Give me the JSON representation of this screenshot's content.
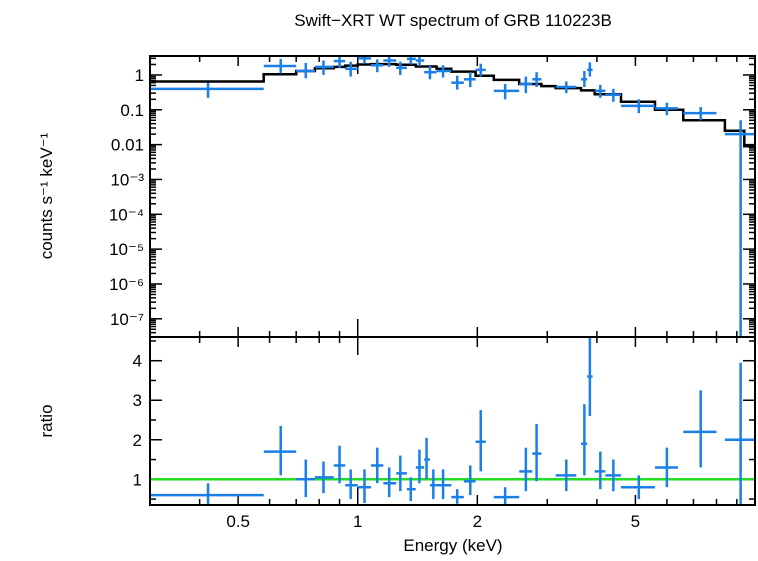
{
  "chart_data": [
    {
      "type": "scatter",
      "title": "Swift−XRT WT spectrum of GRB 110223B",
      "ylabel": "counts s⁻¹ keV⁻¹",
      "yscale": "log",
      "xscale": "log",
      "xlim": [
        0.3,
        10.0
      ],
      "ylim": [
        3e-08,
        3.5
      ],
      "yticks": [
        {
          "v": 1,
          "label": "1"
        },
        {
          "v": 0.1,
          "label": "0.1"
        },
        {
          "v": 0.01,
          "label": "0.01"
        },
        {
          "v": 0.001,
          "label": "10⁻³"
        },
        {
          "v": 0.0001,
          "label": "10⁻⁴"
        },
        {
          "v": 1e-05,
          "label": "10⁻⁵"
        },
        {
          "v": 1e-06,
          "label": "10⁻⁶"
        },
        {
          "v": 1e-07,
          "label": "10⁻⁷"
        }
      ],
      "series": [
        {
          "kind": "data",
          "color": "#1a7fe6",
          "points": [
            {
              "x": 0.42,
              "xlo": 0.3,
              "xhi": 0.58,
              "y": 0.4,
              "ylo": 0.22,
              "yhi": 0.6
            },
            {
              "x": 0.64,
              "xlo": 0.58,
              "xhi": 0.7,
              "y": 1.8,
              "ylo": 1.1,
              "yhi": 2.9
            },
            {
              "x": 0.74,
              "xlo": 0.7,
              "xhi": 0.78,
              "y": 1.3,
              "ylo": 0.8,
              "yhi": 2.2
            },
            {
              "x": 0.82,
              "xlo": 0.78,
              "xhi": 0.87,
              "y": 1.7,
              "ylo": 1.0,
              "yhi": 2.6
            },
            {
              "x": 0.9,
              "xlo": 0.87,
              "xhi": 0.93,
              "y": 2.5,
              "ylo": 1.6,
              "yhi": 3.4
            },
            {
              "x": 0.96,
              "xlo": 0.93,
              "xhi": 1.0,
              "y": 1.5,
              "ylo": 0.9,
              "yhi": 2.4
            },
            {
              "x": 1.04,
              "xlo": 1.0,
              "xhi": 1.08,
              "y": 3.0,
              "ylo": 2.1,
              "yhi": 3.4
            },
            {
              "x": 1.12,
              "xlo": 1.08,
              "xhi": 1.16,
              "y": 1.9,
              "ylo": 1.2,
              "yhi": 2.8
            },
            {
              "x": 1.2,
              "xlo": 1.16,
              "xhi": 1.25,
              "y": 2.6,
              "ylo": 1.7,
              "yhi": 3.4
            },
            {
              "x": 1.28,
              "xlo": 1.25,
              "xhi": 1.33,
              "y": 1.6,
              "ylo": 1.0,
              "yhi": 2.4
            },
            {
              "x": 1.36,
              "xlo": 1.33,
              "xhi": 1.4,
              "y": 2.9,
              "ylo": 2.0,
              "yhi": 3.4
            },
            {
              "x": 1.43,
              "xlo": 1.4,
              "xhi": 1.47,
              "y": 2.6,
              "ylo": 1.8,
              "yhi": 3.4
            },
            {
              "x": 1.52,
              "xlo": 1.47,
              "xhi": 1.58,
              "y": 1.2,
              "ylo": 0.75,
              "yhi": 1.8
            },
            {
              "x": 1.64,
              "xlo": 1.58,
              "xhi": 1.72,
              "y": 1.3,
              "ylo": 0.85,
              "yhi": 1.9
            },
            {
              "x": 1.78,
              "xlo": 1.72,
              "xhi": 1.85,
              "y": 0.6,
              "ylo": 0.38,
              "yhi": 0.95
            },
            {
              "x": 1.92,
              "xlo": 1.85,
              "xhi": 1.98,
              "y": 0.75,
              "ylo": 0.45,
              "yhi": 1.2
            },
            {
              "x": 2.04,
              "xlo": 1.98,
              "xhi": 2.1,
              "y": 1.4,
              "ylo": 0.9,
              "yhi": 2.1
            },
            {
              "x": 2.35,
              "xlo": 2.2,
              "xhi": 2.55,
              "y": 0.35,
              "ylo": 0.2,
              "yhi": 0.55
            },
            {
              "x": 2.65,
              "xlo": 2.55,
              "xhi": 2.75,
              "y": 0.55,
              "ylo": 0.3,
              "yhi": 0.9
            },
            {
              "x": 2.82,
              "xlo": 2.75,
              "xhi": 2.9,
              "y": 0.75,
              "ylo": 0.45,
              "yhi": 1.2
            },
            {
              "x": 3.35,
              "xlo": 3.15,
              "xhi": 3.55,
              "y": 0.45,
              "ylo": 0.3,
              "yhi": 0.65
            },
            {
              "x": 3.72,
              "xlo": 3.65,
              "xhi": 3.78,
              "y": 0.75,
              "ylo": 0.45,
              "yhi": 1.3
            },
            {
              "x": 3.84,
              "xlo": 3.78,
              "xhi": 3.9,
              "y": 1.4,
              "ylo": 0.9,
              "yhi": 2.3
            },
            {
              "x": 4.08,
              "xlo": 3.95,
              "xhi": 4.2,
              "y": 0.35,
              "ylo": 0.22,
              "yhi": 0.52
            },
            {
              "x": 4.4,
              "xlo": 4.2,
              "xhi": 4.6,
              "y": 0.27,
              "ylo": 0.17,
              "yhi": 0.4
            },
            {
              "x": 5.1,
              "xlo": 4.6,
              "xhi": 5.6,
              "y": 0.13,
              "ylo": 0.08,
              "yhi": 0.2
            },
            {
              "x": 6.0,
              "xlo": 5.6,
              "xhi": 6.4,
              "y": 0.11,
              "ylo": 0.07,
              "yhi": 0.16
            },
            {
              "x": 7.3,
              "xlo": 6.6,
              "xhi": 8.0,
              "y": 0.08,
              "ylo": 0.05,
              "yhi": 0.12
            },
            {
              "x": 9.2,
              "xlo": 8.4,
              "xhi": 10.0,
              "y": 0.02,
              "ylo": 3e-08,
              "yhi": 0.05
            }
          ]
        },
        {
          "kind": "model",
          "color": "#000000",
          "steps": [
            {
              "xlo": 0.3,
              "xhi": 0.58,
              "y": 0.65
            },
            {
              "xlo": 0.58,
              "xhi": 0.7,
              "y": 1.05
            },
            {
              "xlo": 0.7,
              "xhi": 0.78,
              "y": 1.3
            },
            {
              "xlo": 0.78,
              "xhi": 0.87,
              "y": 1.55
            },
            {
              "xlo": 0.87,
              "xhi": 0.93,
              "y": 1.7
            },
            {
              "xlo": 0.93,
              "xhi": 1.0,
              "y": 1.85
            },
            {
              "xlo": 1.0,
              "xhi": 1.08,
              "y": 2.0
            },
            {
              "xlo": 1.08,
              "xhi": 1.25,
              "y": 2.05
            },
            {
              "xlo": 1.25,
              "xhi": 1.4,
              "y": 1.95
            },
            {
              "xlo": 1.4,
              "xhi": 1.58,
              "y": 1.75
            },
            {
              "xlo": 1.58,
              "xhi": 1.72,
              "y": 1.5
            },
            {
              "xlo": 1.72,
              "xhi": 1.98,
              "y": 1.25
            },
            {
              "xlo": 1.98,
              "xhi": 2.2,
              "y": 0.95
            },
            {
              "xlo": 2.2,
              "xhi": 2.55,
              "y": 0.72
            },
            {
              "xlo": 2.55,
              "xhi": 2.9,
              "y": 0.55
            },
            {
              "xlo": 2.9,
              "xhi": 3.15,
              "y": 0.48
            },
            {
              "xlo": 3.15,
              "xhi": 3.65,
              "y": 0.42
            },
            {
              "xlo": 3.65,
              "xhi": 3.95,
              "y": 0.36
            },
            {
              "xlo": 3.95,
              "xhi": 4.6,
              "y": 0.28
            },
            {
              "xlo": 4.6,
              "xhi": 5.6,
              "y": 0.17
            },
            {
              "xlo": 5.6,
              "xhi": 6.6,
              "y": 0.1
            },
            {
              "xlo": 6.6,
              "xhi": 8.4,
              "y": 0.05
            },
            {
              "xlo": 8.4,
              "xhi": 9.4,
              "y": 0.025
            },
            {
              "xlo": 9.4,
              "xhi": 10.0,
              "y": 0.009
            }
          ]
        }
      ]
    },
    {
      "type": "scatter",
      "ylabel": "ratio",
      "xlabel": "Energy (keV)",
      "xscale": "log",
      "xlim": [
        0.3,
        10.0
      ],
      "ylim": [
        0.35,
        4.6
      ],
      "yticks": [
        {
          "v": 1,
          "label": "1"
        },
        {
          "v": 2,
          "label": "2"
        },
        {
          "v": 3,
          "label": "3"
        },
        {
          "v": 4,
          "label": "4"
        }
      ],
      "xticks": [
        {
          "v": 0.5,
          "label": "0.5"
        },
        {
          "v": 1,
          "label": "1"
        },
        {
          "v": 2,
          "label": "2"
        },
        {
          "v": 5,
          "label": "5"
        }
      ],
      "reference_line": {
        "y": 1,
        "color": "#22dd22"
      },
      "series": [
        {
          "kind": "data",
          "color": "#1a7fe6",
          "points": [
            {
              "x": 0.42,
              "xlo": 0.3,
              "xhi": 0.58,
              "y": 0.6,
              "ylo": 0.35,
              "yhi": 0.9
            },
            {
              "x": 0.64,
              "xlo": 0.58,
              "xhi": 0.7,
              "y": 1.7,
              "ylo": 1.1,
              "yhi": 2.35
            },
            {
              "x": 0.74,
              "xlo": 0.7,
              "xhi": 0.78,
              "y": 1.0,
              "ylo": 0.55,
              "yhi": 1.5
            },
            {
              "x": 0.82,
              "xlo": 0.78,
              "xhi": 0.87,
              "y": 1.05,
              "ylo": 0.65,
              "yhi": 1.45
            },
            {
              "x": 0.9,
              "xlo": 0.87,
              "xhi": 0.93,
              "y": 1.35,
              "ylo": 0.9,
              "yhi": 1.85
            },
            {
              "x": 0.96,
              "xlo": 0.93,
              "xhi": 1.0,
              "y": 0.85,
              "ylo": 0.5,
              "yhi": 1.25
            },
            {
              "x": 1.04,
              "xlo": 1.0,
              "xhi": 1.08,
              "y": 0.8,
              "ylo": 0.4,
              "yhi": 1.25
            },
            {
              "x": 1.12,
              "xlo": 1.08,
              "xhi": 1.16,
              "y": 1.35,
              "ylo": 0.9,
              "yhi": 1.8
            },
            {
              "x": 1.2,
              "xlo": 1.16,
              "xhi": 1.25,
              "y": 0.9,
              "ylo": 0.55,
              "yhi": 1.3
            },
            {
              "x": 1.28,
              "xlo": 1.25,
              "xhi": 1.33,
              "y": 1.15,
              "ylo": 0.7,
              "yhi": 1.6
            },
            {
              "x": 1.36,
              "xlo": 1.33,
              "xhi": 1.4,
              "y": 0.75,
              "ylo": 0.45,
              "yhi": 1.05
            },
            {
              "x": 1.43,
              "xlo": 1.4,
              "xhi": 1.47,
              "y": 1.3,
              "ylo": 0.9,
              "yhi": 1.75
            },
            {
              "x": 1.49,
              "xlo": 1.47,
              "xhi": 1.52,
              "y": 1.5,
              "ylo": 1.0,
              "yhi": 2.05
            },
            {
              "x": 1.55,
              "xlo": 1.52,
              "xhi": 1.58,
              "y": 0.85,
              "ylo": 0.5,
              "yhi": 1.25
            },
            {
              "x": 1.64,
              "xlo": 1.58,
              "xhi": 1.72,
              "y": 0.85,
              "ylo": 0.5,
              "yhi": 1.25
            },
            {
              "x": 1.78,
              "xlo": 1.72,
              "xhi": 1.85,
              "y": 0.55,
              "ylo": 0.38,
              "yhi": 0.75
            },
            {
              "x": 1.92,
              "xlo": 1.85,
              "xhi": 1.98,
              "y": 0.95,
              "ylo": 0.6,
              "yhi": 1.35
            },
            {
              "x": 2.04,
              "xlo": 1.98,
              "xhi": 2.1,
              "y": 1.95,
              "ylo": 1.2,
              "yhi": 2.75
            },
            {
              "x": 2.35,
              "xlo": 2.2,
              "xhi": 2.55,
              "y": 0.55,
              "ylo": 0.35,
              "yhi": 0.8
            },
            {
              "x": 2.65,
              "xlo": 2.55,
              "xhi": 2.75,
              "y": 1.2,
              "ylo": 0.7,
              "yhi": 1.8
            },
            {
              "x": 2.82,
              "xlo": 2.75,
              "xhi": 2.9,
              "y": 1.65,
              "ylo": 0.95,
              "yhi": 2.4
            },
            {
              "x": 3.35,
              "xlo": 3.15,
              "xhi": 3.55,
              "y": 1.1,
              "ylo": 0.7,
              "yhi": 1.5
            },
            {
              "x": 3.72,
              "xlo": 3.65,
              "xhi": 3.78,
              "y": 1.9,
              "ylo": 1.1,
              "yhi": 2.9
            },
            {
              "x": 3.84,
              "xlo": 3.78,
              "xhi": 3.9,
              "y": 3.6,
              "ylo": 2.6,
              "yhi": 4.6
            },
            {
              "x": 4.08,
              "xlo": 3.95,
              "xhi": 4.2,
              "y": 1.2,
              "ylo": 0.75,
              "yhi": 1.7
            },
            {
              "x": 4.4,
              "xlo": 4.2,
              "xhi": 4.6,
              "y": 1.1,
              "ylo": 0.7,
              "yhi": 1.5
            },
            {
              "x": 5.1,
              "xlo": 4.6,
              "xhi": 5.6,
              "y": 0.8,
              "ylo": 0.5,
              "yhi": 1.1
            },
            {
              "x": 6.0,
              "xlo": 5.6,
              "xhi": 6.4,
              "y": 1.3,
              "ylo": 0.8,
              "yhi": 1.8
            },
            {
              "x": 7.3,
              "xlo": 6.6,
              "xhi": 8.0,
              "y": 2.2,
              "ylo": 1.3,
              "yhi": 3.25
            },
            {
              "x": 9.2,
              "xlo": 8.4,
              "xhi": 10.0,
              "y": 2.0,
              "ylo": 0.35,
              "yhi": 3.95
            }
          ]
        }
      ]
    }
  ]
}
